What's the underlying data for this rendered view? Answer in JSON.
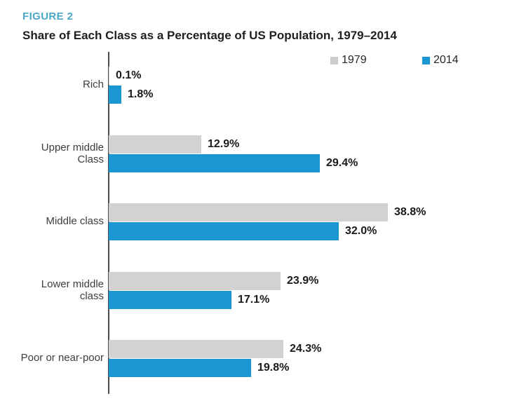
{
  "figure": {
    "label": "FIGURE 2",
    "title": "Share of Each Class as a Percentage of US Population, 1979–2014"
  },
  "legend": {
    "items": [
      {
        "label": "1979",
        "color": "#cdcccc"
      },
      {
        "label": "2014",
        "color": "#1b96d2"
      }
    ]
  },
  "chart_data": {
    "type": "bar",
    "orientation": "horizontal",
    "title": "Share of Each Class as a Percentage of US Population, 1979–2014",
    "categories": [
      "Rich",
      "Upper middle Class",
      "Middle class",
      "Lower middle class",
      "Poor or near-poor"
    ],
    "series": [
      {
        "name": "1979",
        "color": "#d3d2d2",
        "values": [
          0.1,
          12.9,
          38.8,
          23.9,
          24.3
        ],
        "labels": [
          "0.1%",
          "12.9%",
          "38.8%",
          "23.9%",
          "24.3%"
        ]
      },
      {
        "name": "2014",
        "color": "#1b96d2",
        "values": [
          1.8,
          29.4,
          32.0,
          17.1,
          19.8
        ],
        "labels": [
          "1.8%",
          "29.4%",
          "32.0%",
          "17.1%",
          "19.8%"
        ]
      }
    ],
    "xlim": [
      0,
      40
    ],
    "grid": false,
    "legend_position": "top-right",
    "value_labels": "outside-end",
    "accent_color": "#4ba7c8"
  }
}
